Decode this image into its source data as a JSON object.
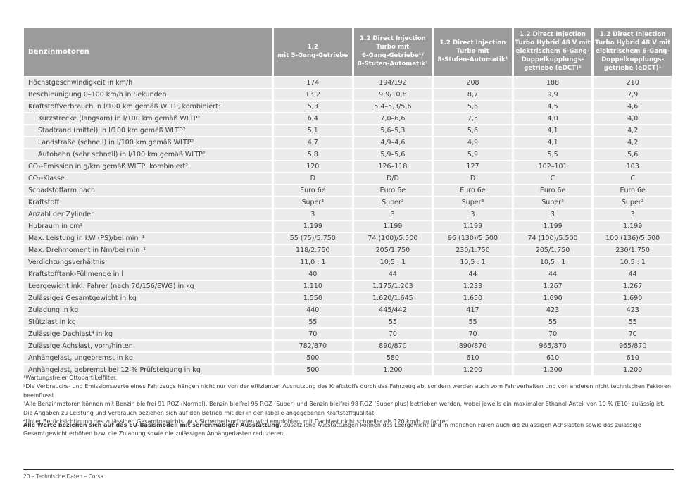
{
  "colors": {
    "header_bg": "#9b9b9b",
    "header_text": "#ffffff",
    "row_bg": "#ececec",
    "text": "#3c3c3c"
  },
  "table": {
    "corner_label": "Benzinmotoren",
    "columns": [
      "1.2\nmit 5-Gang-Getriebe",
      "1.2 Direct Injection\nTurbo mit\n6-Gang-Getriebe¹/\n8-Stufen-Automatik¹",
      "1.2 Direct Injection\nTurbo mit\n8-Stufen-Automatik¹",
      "1.2 Direct Injection\nTurbo Hybrid 48 V mit\nelektrischem 6-Gang-\nDoppelkupplungs-\ngetriebe (eDCT)¹",
      "1.2 Direct Injection\nTurbo Hybrid 48 V mit\nelektrischem 6-Gang-\nDoppelkupplungs-\ngetriebe (eDCT)¹"
    ],
    "rows": [
      {
        "label": "Höchstgeschwindigkeit in km/h",
        "indent": false,
        "values": [
          "174",
          "194/192",
          "208",
          "188",
          "210"
        ]
      },
      {
        "label": "Beschleunigung 0–100 km/h in Sekunden",
        "indent": false,
        "values": [
          "13,2",
          "9,9/10,8",
          "8,7",
          "9,9",
          "7,9"
        ]
      },
      {
        "label": "Kraftstoffverbrauch in l/100 km gemäß WLTP, kombiniert²",
        "indent": false,
        "values": [
          "5,3",
          "5,4–5,3/5,6",
          "5,6",
          "4,5",
          "4,6"
        ]
      },
      {
        "label": "Kurzstrecke (langsam) in l/100 km gemäß WLTP²",
        "indent": true,
        "values": [
          "6,4",
          "7,0–6,6",
          "7,5",
          "4,0",
          "4,0"
        ]
      },
      {
        "label": "Stadtrand (mittel) in l/100 km gemäß WLTP²",
        "indent": true,
        "values": [
          "5,1",
          "5,6–5,3",
          "5,6",
          "4,1",
          "4,2"
        ]
      },
      {
        "label": "Landstraße (schnell) in l/100 km gemäß WLTP²",
        "indent": true,
        "values": [
          "4,7",
          "4,9–4,6",
          "4,9",
          "4,1",
          "4,2"
        ]
      },
      {
        "label": "Autobahn (sehr schnell) in l/100 km gemäß WLTP²",
        "indent": true,
        "values": [
          "5,8",
          "5,9–5,6",
          "5,9",
          "5,5",
          "5,6"
        ]
      },
      {
        "label": "CO₂-Emission in g/km gemäß WLTP, kombiniert²",
        "indent": false,
        "values": [
          "120",
          "126–118",
          "127",
          "102–101",
          "103"
        ]
      },
      {
        "label": "CO₂-Klasse",
        "indent": false,
        "values": [
          "D",
          "D/D",
          "D",
          "C",
          "C"
        ]
      },
      {
        "label": "Schadstoffarm nach",
        "indent": false,
        "values": [
          "Euro 6e",
          "Euro 6e",
          "Euro 6e",
          "Euro 6e",
          "Euro 6e"
        ]
      },
      {
        "label": "Kraftstoff",
        "indent": false,
        "values": [
          "Super³",
          "Super³",
          "Super³",
          "Super³",
          "Super³"
        ]
      },
      {
        "label": "Anzahl der Zylinder",
        "indent": false,
        "values": [
          "3",
          "3",
          "3",
          "3",
          "3"
        ]
      },
      {
        "label": "Hubraum in cm³",
        "indent": false,
        "values": [
          "1.199",
          "1.199",
          "1.199",
          "1.199",
          "1.199"
        ]
      },
      {
        "label": "Max. Leistung in kW (PS)/bei min⁻¹",
        "indent": false,
        "values": [
          "55 (75)/5.750",
          "74 (100)/5.500",
          "96 (130)/5.500",
          "74 (100)/5.500",
          "100 (136)/5.500"
        ]
      },
      {
        "label": "Max. Drehmoment in Nm/bei min⁻¹",
        "indent": false,
        "values": [
          "118/2.750",
          "205/1.750",
          "230/1.750",
          "205/1.750",
          "230/1.750"
        ]
      },
      {
        "label": "Verdichtungsverhältnis",
        "indent": false,
        "values": [
          "11,0 : 1",
          "10,5 : 1",
          "10,5 : 1",
          "10,5 : 1",
          "10,5 : 1"
        ]
      },
      {
        "label": "Kraftstofftank-Füllmenge in l",
        "indent": false,
        "values": [
          "40",
          "44",
          "44",
          "44",
          "44"
        ]
      },
      {
        "label": "Leergewicht inkl. Fahrer (nach 70/156/EWG) in kg",
        "indent": false,
        "values": [
          "1.110",
          "1.175/1.203",
          "1.233",
          "1.267",
          "1.267"
        ]
      },
      {
        "label": "Zulässiges Gesamtgewicht in kg",
        "indent": false,
        "values": [
          "1.550",
          "1.620/1.645",
          "1.650",
          "1.690",
          "1.690"
        ]
      },
      {
        "label": "Zuladung in kg",
        "indent": false,
        "values": [
          "440",
          "445/442",
          "417",
          "423",
          "423"
        ]
      },
      {
        "label": "Stützlast in kg",
        "indent": false,
        "values": [
          "55",
          "55",
          "55",
          "55",
          "55"
        ]
      },
      {
        "label": "Zulässige Dachlast⁴ in kg",
        "indent": false,
        "values": [
          "70",
          "70",
          "70",
          "70",
          "70"
        ]
      },
      {
        "label": "Zulässige Achslast, vorn/hinten",
        "indent": false,
        "values": [
          "782/870",
          "890/870",
          "890/870",
          "965/870",
          "965/870"
        ]
      },
      {
        "label": "Anhängelast, ungebremst in kg",
        "indent": false,
        "values": [
          "500",
          "580",
          "610",
          "610",
          "610"
        ]
      },
      {
        "label": "Anhängelast, gebremst bei 12 % Prüfsteigung in kg",
        "indent": false,
        "values": [
          "500",
          "1.200",
          "1.200",
          "1.200",
          "1.200"
        ]
      }
    ]
  },
  "footnotes": [
    "¹Wartungsfreier Ottopartikelfilter.",
    "²Die Verbrauchs- und Emissionswerte eines Fahrzeugs hängen nicht nur von der effizienten Ausnutzung des Kraftstoffs durch das Fahrzeug ab, sondern werden auch vom Fahrverhalten und von anderen nicht technischen Faktoren beeinflusst.",
    "³Alle Benzinmotoren können mit Benzin bleifrei 91 ROZ (Normal), Benzin bleifrei 95 ROZ (Super) und Benzin bleifrei 98 ROZ (Super plus) betrieben werden, wobei jeweils ein maximaler Ethanol-Anteil von 10 % (E10) zulässig ist. Die Angaben zu Leistung und Verbrauch beziehen sich auf den Betrieb mit der in der Tabelle angegebenen Kraftstoffqualität.",
    "⁴Unter Berücksichtigung des zulässigen Gesamtgewichts. Aus Sicherheitsgründen wird empfohlen, mit Dachlast nicht schneller als 120 km/h zu fahren."
  ],
  "note": {
    "bold": "Alle Werte beziehen sich auf das EU-Basismodell mit serienmäßiger Ausstattung.",
    "rest": "Zusätzliche Ausstattungen können das Leergewicht und in manchen Fällen auch die zulässigen Achslasten sowie das zulässige Gesamtgewicht erhöhen bzw. die Zuladung sowie die zulässigen Anhängerlasten reduzieren."
  },
  "footer": {
    "text": "20 – Technische Daten – Corsa"
  }
}
